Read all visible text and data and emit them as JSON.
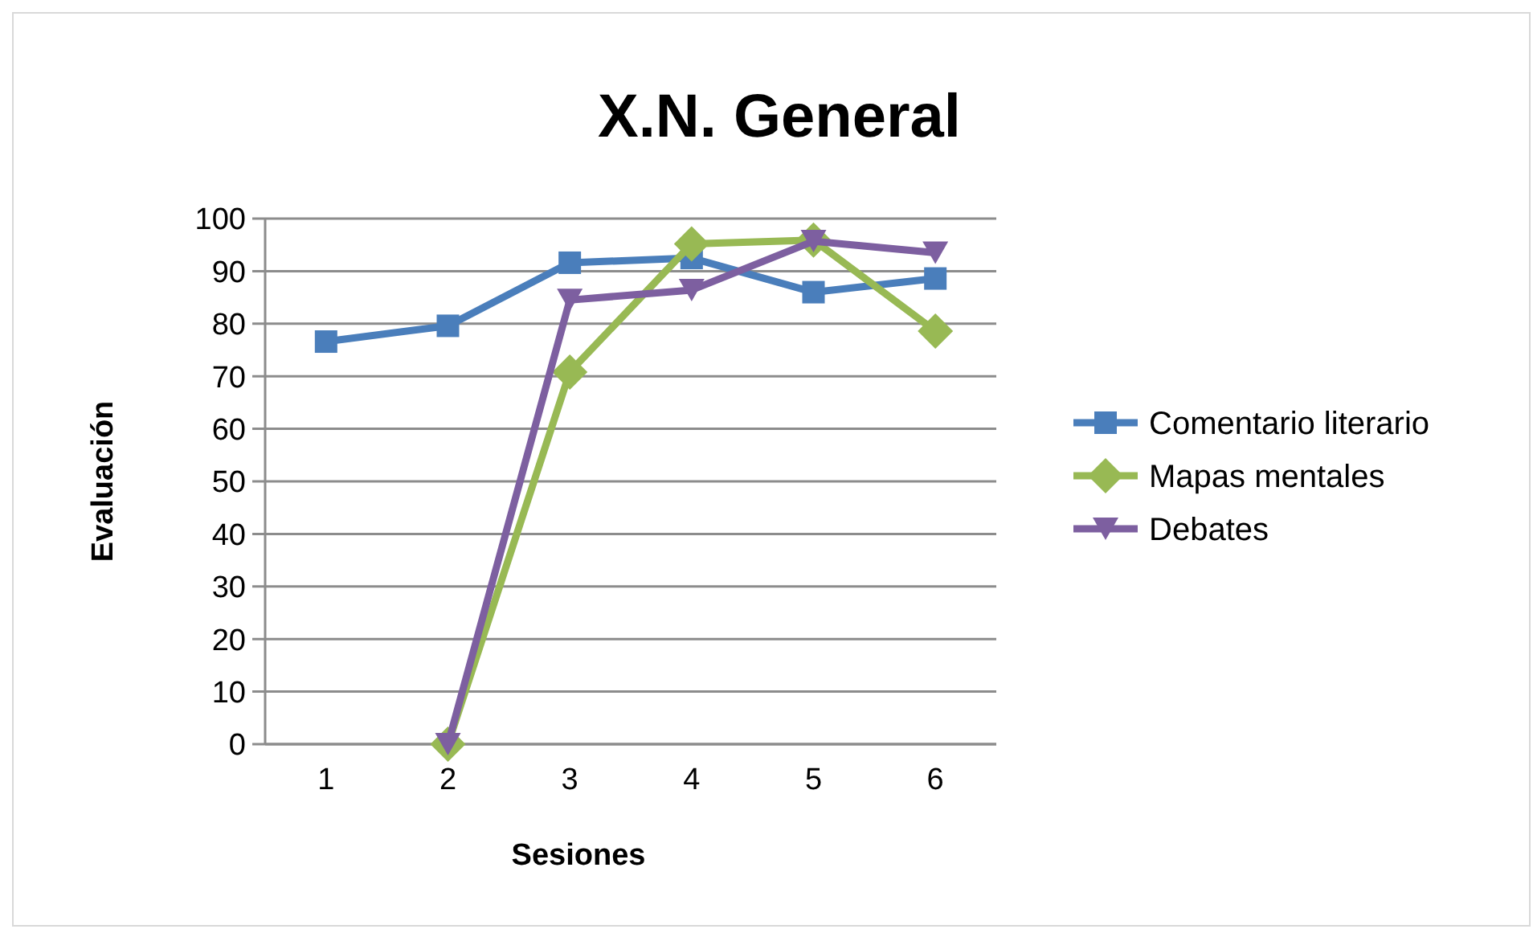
{
  "chart_data": {
    "type": "line",
    "title": "X.N. General",
    "xlabel": "Sesiones",
    "ylabel": "Evaluación",
    "categories": [
      "1",
      "2",
      "3",
      "4",
      "5",
      "6"
    ],
    "series": [
      {
        "name": "Comentario literario",
        "color": "#4a7ebb",
        "marker": "square",
        "values": [
          76.6,
          79.6,
          91.6,
          92.5,
          86,
          88.6
        ]
      },
      {
        "name": "Mapas mentales",
        "color": "#98b954",
        "marker": "diamond",
        "values": [
          null,
          0,
          70.8,
          95.2,
          95.9,
          78.6
        ]
      },
      {
        "name": "Debates",
        "color": "#7d5fa0",
        "marker": "triangle",
        "values": [
          null,
          0,
          84.5,
          86.4,
          95.7,
          93.5
        ]
      }
    ],
    "ylim": [
      0,
      100
    ],
    "yticks": [
      0,
      10,
      20,
      30,
      40,
      50,
      60,
      70,
      80,
      90,
      100
    ],
    "grid": "y",
    "legend": "right"
  }
}
